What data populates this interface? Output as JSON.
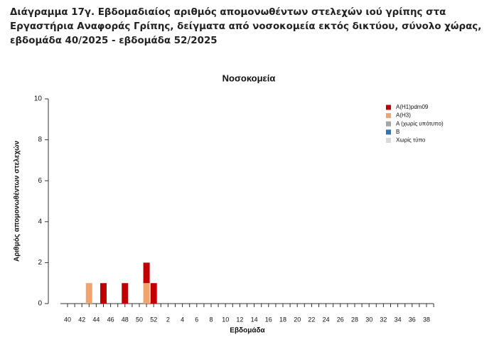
{
  "chart_data": {
    "type": "bar",
    "stacked": true,
    "title": "Διάγραμμα 17γ. Εβδομαδιαίος αριθμός απομονωθέντων στελεχών ιού γρίπης στα Εργαστήρια Αναφοράς Γρίπης, δείγματα από νοσοκομεία εκτός δικτύου, σύνολο χώρας, εβδομάδα 40/2025 - εβδομάδα 52/2025",
    "subtitle": "Νοσοκομεία",
    "x_label": "Εβδομάδα",
    "y_label": "Αριθμός απομονωθέντων στελεχών",
    "categories": [
      "40",
      null,
      "42",
      null,
      "44",
      null,
      "46",
      null,
      "48",
      null,
      "50",
      null,
      "52",
      null,
      "2",
      null,
      "4",
      null,
      "6",
      null,
      "8",
      null,
      "10",
      null,
      "12",
      null,
      "14",
      null,
      "16",
      null,
      "18",
      null,
      "20",
      null,
      "22",
      null,
      "24",
      null,
      "26",
      null,
      "28",
      null,
      "30",
      null,
      "32",
      null,
      "34",
      null,
      "36",
      null,
      "38",
      null
    ],
    "series": [
      {
        "name": "A(H1)pdm09",
        "color": "#c00000",
        "values": [
          0,
          0,
          0,
          0,
          0,
          1,
          0,
          0,
          1,
          0,
          0,
          1,
          1,
          0,
          0,
          0,
          0,
          0,
          0,
          0,
          0,
          0,
          0,
          0,
          0,
          0,
          0,
          0,
          0,
          0,
          0,
          0,
          0,
          0,
          0,
          0,
          0,
          0,
          0,
          0,
          0,
          0,
          0,
          0,
          0,
          0,
          0,
          0,
          0,
          0,
          0,
          0
        ]
      },
      {
        "name": "A(H3)",
        "color": "#f0a46e",
        "values": [
          0,
          0,
          0,
          1,
          0,
          0,
          0,
          0,
          0,
          0,
          0,
          1,
          0,
          0,
          0,
          0,
          0,
          0,
          0,
          0,
          0,
          0,
          0,
          0,
          0,
          0,
          0,
          0,
          0,
          0,
          0,
          0,
          0,
          0,
          0,
          0,
          0,
          0,
          0,
          0,
          0,
          0,
          0,
          0,
          0,
          0,
          0,
          0,
          0,
          0,
          0,
          0
        ]
      },
      {
        "name": "A (χωρίς υπότυπο)",
        "color": "#a6a6a6",
        "values": [
          0,
          0,
          0,
          0,
          0,
          0,
          0,
          0,
          0,
          0,
          0,
          0,
          0,
          0,
          0,
          0,
          0,
          0,
          0,
          0,
          0,
          0,
          0,
          0,
          0,
          0,
          0,
          0,
          0,
          0,
          0,
          0,
          0,
          0,
          0,
          0,
          0,
          0,
          0,
          0,
          0,
          0,
          0,
          0,
          0,
          0,
          0,
          0,
          0,
          0,
          0,
          0
        ]
      },
      {
        "name": "B",
        "color": "#2e75b6",
        "values": [
          0,
          0,
          0,
          0,
          0,
          0,
          0,
          0,
          0,
          0,
          0,
          0,
          0,
          0,
          0,
          0,
          0,
          0,
          0,
          0,
          0,
          0,
          0,
          0,
          0,
          0,
          0,
          0,
          0,
          0,
          0,
          0,
          0,
          0,
          0,
          0,
          0,
          0,
          0,
          0,
          0,
          0,
          0,
          0,
          0,
          0,
          0,
          0,
          0,
          0,
          0,
          0
        ]
      },
      {
        "name": "Χωρίς τύπο",
        "color": "#d9d9d9",
        "values": [
          0,
          0,
          0,
          0,
          0,
          0,
          0,
          0,
          0,
          0,
          0,
          0,
          0,
          0,
          0,
          0,
          0,
          0,
          0,
          0,
          0,
          0,
          0,
          0,
          0,
          0,
          0,
          0,
          0,
          0,
          0,
          0,
          0,
          0,
          0,
          0,
          0,
          0,
          0,
          0,
          0,
          0,
          0,
          0,
          0,
          0,
          0,
          0,
          0,
          0,
          0,
          0
        ]
      }
    ],
    "ylim": [
      0,
      10
    ],
    "yticks": [
      0,
      2,
      4,
      6,
      8,
      10
    ],
    "legend": "top-right"
  }
}
